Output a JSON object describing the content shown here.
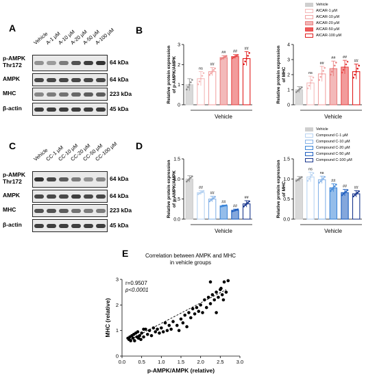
{
  "panels": {
    "A": "A",
    "B": "B",
    "C": "C",
    "D": "D",
    "E": "E"
  },
  "blot_A": {
    "lanes": [
      "Vehicle",
      "A-1 μM",
      "A-10 μM",
      "A-20 μM",
      "A-50 μM",
      "A-100 μM"
    ],
    "rows": [
      {
        "label": "p-AMPK\nThr172",
        "kda": "64 kDa",
        "intensity": [
          0.45,
          0.4,
          0.55,
          0.75,
          0.85,
          0.9
        ]
      },
      {
        "label": "AMPK",
        "kda": "64 kDa",
        "intensity": [
          0.8,
          0.8,
          0.8,
          0.8,
          0.8,
          0.8
        ]
      },
      {
        "label": "MHC",
        "kda": "223 kDa",
        "intensity": [
          0.5,
          0.55,
          0.6,
          0.65,
          0.7,
          0.7
        ]
      },
      {
        "label": "β-actin",
        "kda": "45 kDa",
        "intensity": [
          0.85,
          0.85,
          0.85,
          0.85,
          0.85,
          0.85
        ]
      }
    ]
  },
  "blot_C": {
    "lanes": [
      "Vehicle",
      "CC-1 μM",
      "CC-10 μM",
      "CC-20 μM",
      "CC-50 μM",
      "CC-100 μM"
    ],
    "rows": [
      {
        "label": "p-AMPK\nThr172",
        "kda": "64 kDa",
        "intensity": [
          0.9,
          0.8,
          0.7,
          0.55,
          0.45,
          0.5
        ]
      },
      {
        "label": "AMPK",
        "kda": "64 kDa",
        "intensity": [
          0.8,
          0.8,
          0.8,
          0.85,
          0.8,
          0.8
        ]
      },
      {
        "label": "MHC",
        "kda": "223 kDa",
        "intensity": [
          0.75,
          0.75,
          0.7,
          0.6,
          0.55,
          0.55
        ]
      },
      {
        "label": "β-actin",
        "kda": "45 kDa",
        "intensity": [
          0.85,
          0.85,
          0.85,
          0.85,
          0.85,
          0.85
        ]
      }
    ]
  },
  "legend_B": {
    "items": [
      "Vehicle",
      "AICAR-1 μM",
      "AICAR-10 μM",
      "AICAR-20 μM",
      "AICAR-50 μM",
      "AICAR-100 μM"
    ],
    "fills": [
      "#cfcfcf",
      "#ffffff",
      "#ffffff",
      "#f3b6b6",
      "#f05a5a",
      "#ffffff"
    ],
    "strokes": [
      "#cfcfcf",
      "#f4b9b9",
      "#f2a3a3",
      "#e97f7f",
      "#e84848",
      "#e01a1a"
    ]
  },
  "legend_D": {
    "items": [
      "Vehicle",
      "Compound C-1 μM",
      "Compound C-10 μM",
      "Compound C-20 μM",
      "Compound C-50 μM",
      "Compound C-100 μM"
    ],
    "fills": [
      "#cfcfcf",
      "#ffffff",
      "#ffffff",
      "#ffffff",
      "#ffffff",
      "#ffffff"
    ],
    "strokes": [
      "#cfcfcf",
      "#b7d3f2",
      "#86b3e8",
      "#3d86d8",
      "#1f5fc0",
      "#16348c"
    ]
  },
  "chart_data": [
    {
      "type": "bar",
      "id": "B-left",
      "ylabel": "Relative protein expression\nof p-AMPK/AMPK",
      "xlabel": "Vehicle",
      "ylim": [
        0,
        3
      ],
      "yticks": [
        "0",
        "1",
        "2",
        "3"
      ],
      "colors": [
        "#cfcfcf",
        "#f4b9b9",
        "#f2a3a3",
        "#e97f7f",
        "#e84848",
        "#e01a1a"
      ],
      "values": [
        1.0,
        1.3,
        1.65,
        2.35,
        2.4,
        2.3
      ],
      "errors": [
        0.3,
        0.35,
        0.2,
        0.1,
        0.1,
        0.35
      ],
      "annotations": [
        "",
        "ns",
        "##",
        "##",
        "##",
        "##"
      ]
    },
    {
      "type": "bar",
      "id": "B-right",
      "ylabel": "Relative protein expression\nof MHC",
      "xlabel": "Vehicle",
      "ylim": [
        0,
        4
      ],
      "yticks": [
        "0",
        "1",
        "2",
        "3",
        "4"
      ],
      "colors": [
        "#cfcfcf",
        "#f4b9b9",
        "#f2a3a3",
        "#e97f7f",
        "#e84848",
        "#e01a1a"
      ],
      "values": [
        1.0,
        1.45,
        2.05,
        2.4,
        2.5,
        2.2
      ],
      "errors": [
        0.2,
        0.45,
        0.5,
        0.5,
        0.45,
        0.5
      ],
      "annotations": [
        "",
        "ns",
        "##",
        "##",
        "##",
        "##"
      ]
    },
    {
      "type": "bar",
      "id": "D-left",
      "ylabel": "Relative protein expression\nof p-AMPK/AMPK",
      "xlabel": "Vehicle",
      "ylim": [
        0,
        1.5
      ],
      "yticks": [
        "0.0",
        "0.5",
        "1.0",
        "1.5"
      ],
      "colors": [
        "#cfcfcf",
        "#b7d3f2",
        "#86b3e8",
        "#3d86d8",
        "#1f5fc0",
        "#16348c"
      ],
      "values": [
        1.0,
        0.66,
        0.5,
        0.33,
        0.22,
        0.38
      ],
      "errors": [
        0.08,
        0.05,
        0.07,
        0.02,
        0.03,
        0.08
      ],
      "annotations": [
        "",
        "##",
        "##",
        "##",
        "##",
        "##"
      ]
    },
    {
      "type": "bar",
      "id": "D-right",
      "ylabel": "Relative protein expression\nof MHC",
      "xlabel": "Vehicle",
      "ylim": [
        0,
        1.5
      ],
      "yticks": [
        "0.0",
        "0.5",
        "1.0",
        "1.5"
      ],
      "colors": [
        "#cfcfcf",
        "#b7d3f2",
        "#86b3e8",
        "#3d86d8",
        "#1f5fc0",
        "#16348c"
      ],
      "values": [
        1.0,
        1.05,
        0.98,
        0.78,
        0.66,
        0.63
      ],
      "errors": [
        0.06,
        0.12,
        0.09,
        0.1,
        0.08,
        0.08
      ],
      "annotations": [
        "",
        "ns",
        "ns",
        "##",
        "##",
        "##"
      ]
    },
    {
      "type": "scatter",
      "id": "E",
      "title": "Correlation between AMPK and MHC\nin vehicle groups",
      "xlabel": "p-AMPK/AMPK (relative)",
      "ylabel": "MHC (relative)",
      "xlim": [
        0.0,
        3.0
      ],
      "ylim": [
        0,
        3
      ],
      "xticks": [
        "0.0",
        "0.5",
        "1.0",
        "1.5",
        "2.0",
        "2.5",
        "3.0"
      ],
      "yticks": [
        "0",
        "1",
        "2",
        "3"
      ],
      "r_label": "r=0.9507",
      "p_label": "p<0.0001",
      "trend": {
        "x": [
          0.15,
          2.65
        ],
        "y": [
          0.6,
          2.6
        ]
      },
      "points": [
        [
          0.15,
          0.7
        ],
        [
          0.18,
          0.65
        ],
        [
          0.2,
          0.75
        ],
        [
          0.22,
          0.6
        ],
        [
          0.25,
          0.8
        ],
        [
          0.28,
          0.7
        ],
        [
          0.3,
          0.85
        ],
        [
          0.32,
          0.6
        ],
        [
          0.35,
          0.9
        ],
        [
          0.38,
          0.75
        ],
        [
          0.4,
          0.95
        ],
        [
          0.42,
          0.7
        ],
        [
          0.45,
          0.8
        ],
        [
          0.48,
          0.65
        ],
        [
          0.5,
          0.9
        ],
        [
          0.55,
          0.75
        ],
        [
          0.6,
          1.05
        ],
        [
          0.65,
          0.85
        ],
        [
          0.7,
          1.0
        ],
        [
          0.75,
          0.8
        ],
        [
          0.8,
          1.1
        ],
        [
          0.85,
          0.95
        ],
        [
          0.9,
          1.05
        ],
        [
          0.95,
          0.9
        ],
        [
          1.0,
          1.1
        ],
        [
          1.05,
          0.95
        ],
        [
          1.1,
          1.3
        ],
        [
          1.15,
          1.0
        ],
        [
          1.2,
          1.2
        ],
        [
          1.25,
          1.05
        ],
        [
          1.3,
          1.35
        ],
        [
          1.4,
          1.2
        ],
        [
          1.5,
          1.45
        ],
        [
          1.55,
          1.3
        ],
        [
          1.6,
          1.6
        ],
        [
          1.65,
          1.15
        ],
        [
          1.7,
          1.7
        ],
        [
          1.75,
          1.5
        ],
        [
          1.8,
          1.85
        ],
        [
          1.85,
          1.65
        ],
        [
          1.9,
          1.9
        ],
        [
          1.95,
          1.75
        ],
        [
          2.0,
          2.0
        ],
        [
          2.05,
          1.7
        ],
        [
          2.1,
          2.2
        ],
        [
          2.15,
          1.9
        ],
        [
          2.2,
          2.3
        ],
        [
          2.25,
          2.05
        ],
        [
          2.3,
          2.4
        ],
        [
          2.35,
          2.2
        ],
        [
          2.4,
          2.5
        ],
        [
          2.45,
          2.3
        ],
        [
          2.5,
          2.6
        ],
        [
          2.55,
          2.4
        ],
        [
          2.6,
          2.9
        ],
        [
          2.65,
          2.5
        ],
        [
          2.7,
          2.95
        ],
        [
          2.25,
          2.9
        ],
        [
          2.4,
          1.7
        ],
        [
          1.45,
          1.0
        ],
        [
          0.55,
          1.05
        ],
        [
          2.52,
          2.65
        ],
        [
          2.58,
          2.2
        ]
      ]
    }
  ]
}
